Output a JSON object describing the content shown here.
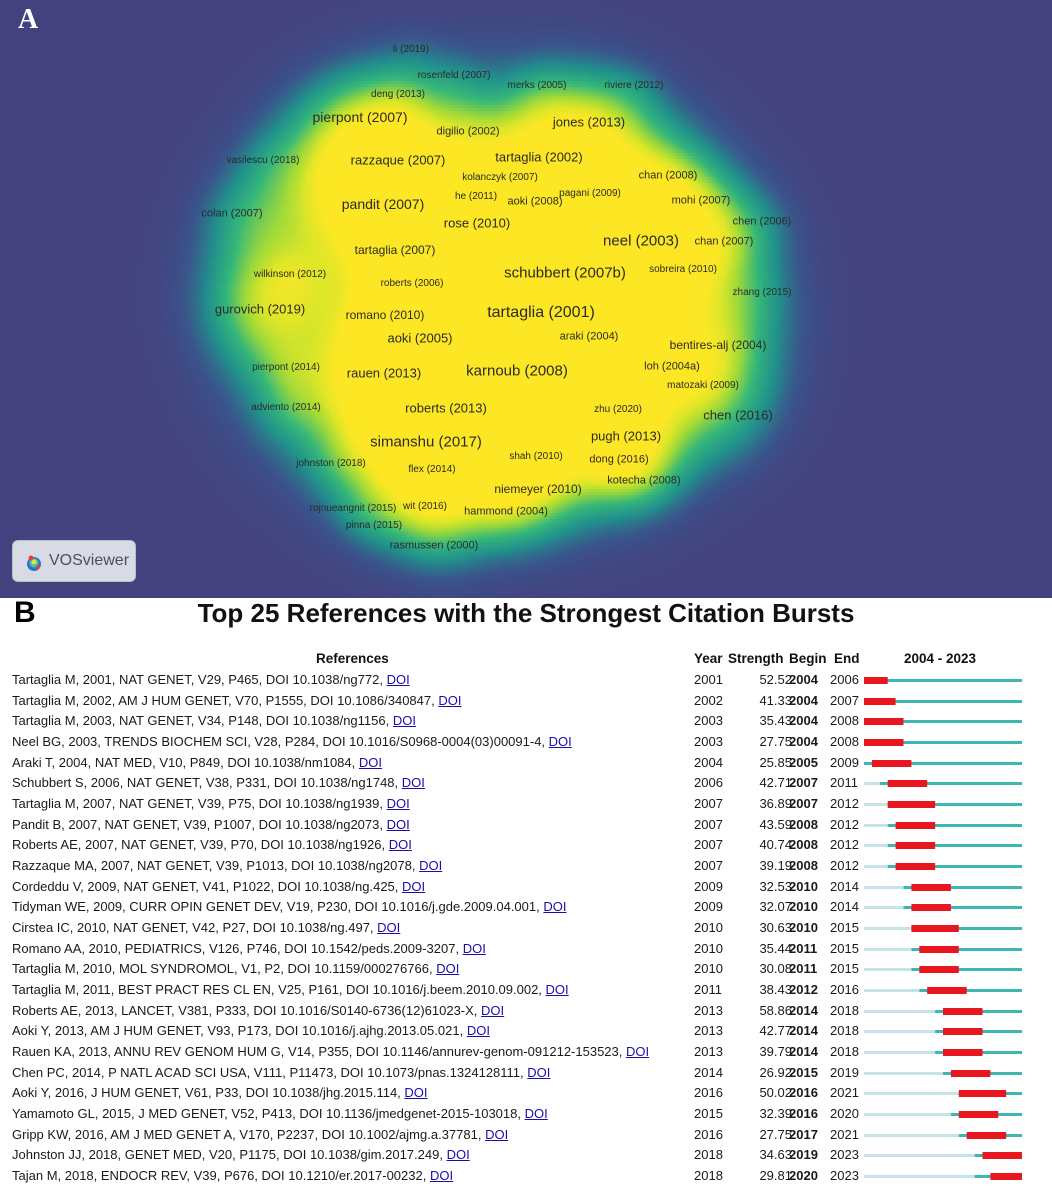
{
  "panel_a": {
    "letter": "A",
    "badge_label": "VOSviewer",
    "nodes": [
      {
        "label": "li (2019)"
      },
      {
        "label": "rosenfeld (2007)"
      },
      {
        "label": "merks (2005)"
      },
      {
        "label": "riviere (2012)"
      },
      {
        "label": "deng (2013)"
      },
      {
        "label": "pierpont (2007)"
      },
      {
        "label": "digilio (2002)"
      },
      {
        "label": "jones (2013)"
      },
      {
        "label": "vasilescu (2018)"
      },
      {
        "label": "razzaque (2007)"
      },
      {
        "label": "tartaglia (2002)"
      },
      {
        "label": "kolanczyk (2007)"
      },
      {
        "label": "chan (2008)"
      },
      {
        "label": "pandit (2007)"
      },
      {
        "label": "he (2011)"
      },
      {
        "label": "aoki (2008)"
      },
      {
        "label": "pagani (2009)"
      },
      {
        "label": "mohi (2007)"
      },
      {
        "label": "colan (2007)"
      },
      {
        "label": "rose (2010)"
      },
      {
        "label": "chen (2006)"
      },
      {
        "label": "neel (2003)"
      },
      {
        "label": "chan (2007)"
      },
      {
        "label": "tartaglia (2007)"
      },
      {
        "label": "schubbert (2007b)"
      },
      {
        "label": "wilkinson (2012)"
      },
      {
        "label": "roberts (2006)"
      },
      {
        "label": "sobreira (2010)"
      },
      {
        "label": "zhang (2015)"
      },
      {
        "label": "gurovich (2019)"
      },
      {
        "label": "romano (2010)"
      },
      {
        "label": "tartaglia (2001)"
      },
      {
        "label": "aoki (2005)"
      },
      {
        "label": "araki (2004)"
      },
      {
        "label": "bentires-alj (2004)"
      },
      {
        "label": "pierpont (2014)"
      },
      {
        "label": "rauen (2013)"
      },
      {
        "label": "karnoub (2008)"
      },
      {
        "label": "loh (2004a)"
      },
      {
        "label": "matozaki (2009)"
      },
      {
        "label": "adviento (2014)"
      },
      {
        "label": "roberts (2013)"
      },
      {
        "label": "zhu (2020)"
      },
      {
        "label": "chen (2016)"
      },
      {
        "label": "simanshu (2017)"
      },
      {
        "label": "pugh (2013)"
      },
      {
        "label": "johnston (2018)"
      },
      {
        "label": "flex (2014)"
      },
      {
        "label": "shah (2010)"
      },
      {
        "label": "dong (2016)"
      },
      {
        "label": "kotecha (2008)"
      },
      {
        "label": "niemeyer (2010)"
      },
      {
        "label": "rojnueangnit (2015)"
      },
      {
        "label": "wit (2016)"
      },
      {
        "label": "hammond (2004)"
      },
      {
        "label": "pinna (2015)"
      },
      {
        "label": "rasmussen (2000)"
      }
    ]
  },
  "panel_b": {
    "letter": "B",
    "title": "Top 25 References with the Strongest Citation Bursts",
    "headers": {
      "references": "References",
      "year": "Year",
      "strength": "Strength",
      "begin": "Begin",
      "end": "End",
      "range": "2004 - 2023"
    },
    "colors": {
      "burst": "#e8171f",
      "active": "#3fb6b2",
      "pre": "#c6e4e6"
    },
    "range_start": 2004,
    "range_end": 2023,
    "link_text": "DOI",
    "rows": [
      {
        "ref": "Tartaglia M, 2001, NAT GENET, V29, P465, DOI 10.1038/ng772,",
        "year": "2001",
        "strength": "52.52",
        "begin": "2004",
        "end": "2006"
      },
      {
        "ref": "Tartaglia M, 2002, AM J HUM GENET, V70, P1555, DOI 10.1086/340847,",
        "year": "2002",
        "strength": "41.33",
        "begin": "2004",
        "end": "2007"
      },
      {
        "ref": "Tartaglia M, 2003, NAT GENET, V34, P148, DOI 10.1038/ng1156,",
        "year": "2003",
        "strength": "35.43",
        "begin": "2004",
        "end": "2008"
      },
      {
        "ref": "Neel BG, 2003, TRENDS BIOCHEM SCI, V28, P284, DOI 10.1016/S0968-0004(03)00091-4,",
        "year": "2003",
        "strength": "27.75",
        "begin": "2004",
        "end": "2008"
      },
      {
        "ref": "Araki T, 2004, NAT MED, V10, P849, DOI 10.1038/nm1084,",
        "year": "2004",
        "strength": "25.85",
        "begin": "2005",
        "end": "2009"
      },
      {
        "ref": "Schubbert S, 2006, NAT GENET, V38, P331, DOI 10.1038/ng1748,",
        "year": "2006",
        "strength": "42.71",
        "begin": "2007",
        "end": "2011"
      },
      {
        "ref": "Tartaglia M, 2007, NAT GENET, V39, P75, DOI 10.1038/ng1939,",
        "year": "2007",
        "strength": "36.89",
        "begin": "2007",
        "end": "2012"
      },
      {
        "ref": "Pandit B, 2007, NAT GENET, V39, P1007, DOI 10.1038/ng2073,",
        "year": "2007",
        "strength": "43.59",
        "begin": "2008",
        "end": "2012"
      },
      {
        "ref": "Roberts AE, 2007, NAT GENET, V39, P70, DOI 10.1038/ng1926,",
        "year": "2007",
        "strength": "40.74",
        "begin": "2008",
        "end": "2012"
      },
      {
        "ref": "Razzaque MA, 2007, NAT GENET, V39, P1013, DOI 10.1038/ng2078,",
        "year": "2007",
        "strength": "39.19",
        "begin": "2008",
        "end": "2012"
      },
      {
        "ref": "Cordeddu V, 2009, NAT GENET, V41, P1022, DOI 10.1038/ng.425,",
        "year": "2009",
        "strength": "32.53",
        "begin": "2010",
        "end": "2014"
      },
      {
        "ref": "Tidyman WE, 2009, CURR OPIN GENET DEV, V19, P230, DOI 10.1016/j.gde.2009.04.001,",
        "year": "2009",
        "strength": "32.07",
        "begin": "2010",
        "end": "2014"
      },
      {
        "ref": "Cirstea IC, 2010, NAT GENET, V42, P27, DOI 10.1038/ng.497,",
        "year": "2010",
        "strength": "30.63",
        "begin": "2010",
        "end": "2015"
      },
      {
        "ref": "Romano AA, 2010, PEDIATRICS, V126, P746, DOI 10.1542/peds.2009-3207,",
        "year": "2010",
        "strength": "35.44",
        "begin": "2011",
        "end": "2015"
      },
      {
        "ref": "Tartaglia M, 2010, MOL SYNDROMOL, V1, P2, DOI 10.1159/000276766,",
        "year": "2010",
        "strength": "30.08",
        "begin": "2011",
        "end": "2015"
      },
      {
        "ref": "Tartaglia M, 2011, BEST PRACT RES CL EN, V25, P161, DOI 10.1016/j.beem.2010.09.002,",
        "year": "2011",
        "strength": "38.43",
        "begin": "2012",
        "end": "2016"
      },
      {
        "ref": "Roberts AE, 2013, LANCET, V381, P333, DOI 10.1016/S0140-6736(12)61023-X,",
        "year": "2013",
        "strength": "58.86",
        "begin": "2014",
        "end": "2018"
      },
      {
        "ref": "Aoki Y, 2013, AM J HUM GENET, V93, P173, DOI 10.1016/j.ajhg.2013.05.021,",
        "year": "2013",
        "strength": "42.77",
        "begin": "2014",
        "end": "2018"
      },
      {
        "ref": "Rauen KA, 2013, ANNU REV GENOM HUM G, V14, P355, DOI 10.1146/annurev-genom-091212-153523,",
        "year": "2013",
        "strength": "39.79",
        "begin": "2014",
        "end": "2018"
      },
      {
        "ref": "Chen PC, 2014, P NATL ACAD SCI USA, V111, P11473, DOI 10.1073/pnas.1324128111,",
        "year": "2014",
        "strength": "26.92",
        "begin": "2015",
        "end": "2019"
      },
      {
        "ref": "Aoki Y, 2016, J HUM GENET, V61, P33, DOI 10.1038/jhg.2015.114,",
        "year": "2016",
        "strength": "50.02",
        "begin": "2016",
        "end": "2021"
      },
      {
        "ref": "Yamamoto GL, 2015, J MED GENET, V52, P413, DOI 10.1136/jmedgenet-2015-103018,",
        "year": "2015",
        "strength": "32.39",
        "begin": "2016",
        "end": "2020"
      },
      {
        "ref": "Gripp KW, 2016, AM J MED GENET A, V170, P2237, DOI 10.1002/ajmg.a.37781,",
        "year": "2016",
        "strength": "27.75",
        "begin": "2017",
        "end": "2021"
      },
      {
        "ref": "Johnston JJ, 2018, GENET MED, V20, P1175, DOI 10.1038/gim.2017.249,",
        "year": "2018",
        "strength": "34.63",
        "begin": "2019",
        "end": "2023"
      },
      {
        "ref": "Tajan M, 2018, ENDOCR REV, V39, P676, DOI 10.1210/er.2017-00232,",
        "year": "2018",
        "strength": "29.81",
        "begin": "2020",
        "end": "2023"
      }
    ]
  }
}
